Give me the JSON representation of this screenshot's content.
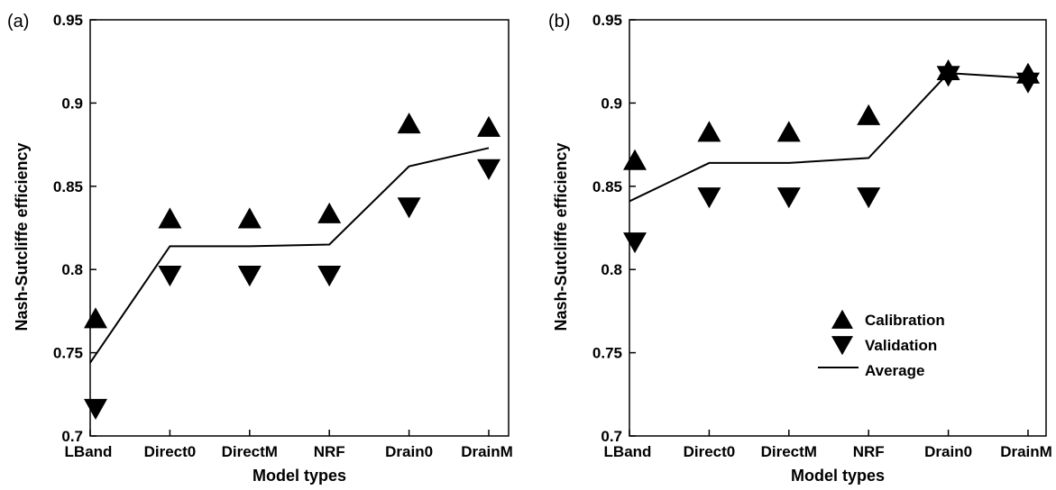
{
  "chart_data": [
    {
      "type": "scatter",
      "panel_label": "(a)",
      "categories": [
        "LBand",
        "Direct0",
        "DirectM",
        "NRF",
        "Drain0",
        "DrainM"
      ],
      "xlabel": "Model types",
      "ylabel": "Nash-Sutcliffe efficiency",
      "ylim": [
        0.7,
        0.95
      ],
      "yticks": [
        "0.7",
        "0.75",
        "0.8",
        "0.85",
        "0.9",
        "0.95"
      ],
      "grid": false,
      "series": [
        {
          "name": "Calibration",
          "marker": "triangle-up",
          "values": [
            0.77,
            0.83,
            0.83,
            0.833,
            0.887,
            0.885
          ]
        },
        {
          "name": "Validation",
          "marker": "triangle-down",
          "values": [
            0.717,
            0.797,
            0.797,
            0.797,
            0.838,
            0.861
          ]
        },
        {
          "name": "Average",
          "marker": "line",
          "values": [
            0.744,
            0.814,
            0.814,
            0.815,
            0.862,
            0.873
          ]
        }
      ]
    },
    {
      "type": "scatter",
      "panel_label": "(b)",
      "categories": [
        "LBand",
        "Direct0",
        "DirectM",
        "NRF",
        "Drain0",
        "DrainM"
      ],
      "xlabel": "Model types",
      "ylabel": "Nash-Sutcliffe efficiency",
      "ylim": [
        0.7,
        0.95
      ],
      "yticks": [
        "0.7",
        "0.75",
        "0.8",
        "0.85",
        "0.9",
        "0.95"
      ],
      "grid": false,
      "legend": "center-right",
      "series": [
        {
          "name": "Calibration",
          "marker": "triangle-up",
          "values": [
            0.865,
            0.882,
            0.882,
            0.892,
            0.919,
            0.917
          ]
        },
        {
          "name": "Validation",
          "marker": "triangle-down",
          "values": [
            0.817,
            0.844,
            0.844,
            0.844,
            0.917,
            0.913
          ]
        },
        {
          "name": "Average",
          "marker": "line",
          "values": [
            0.841,
            0.864,
            0.864,
            0.867,
            0.918,
            0.915
          ]
        }
      ]
    }
  ]
}
